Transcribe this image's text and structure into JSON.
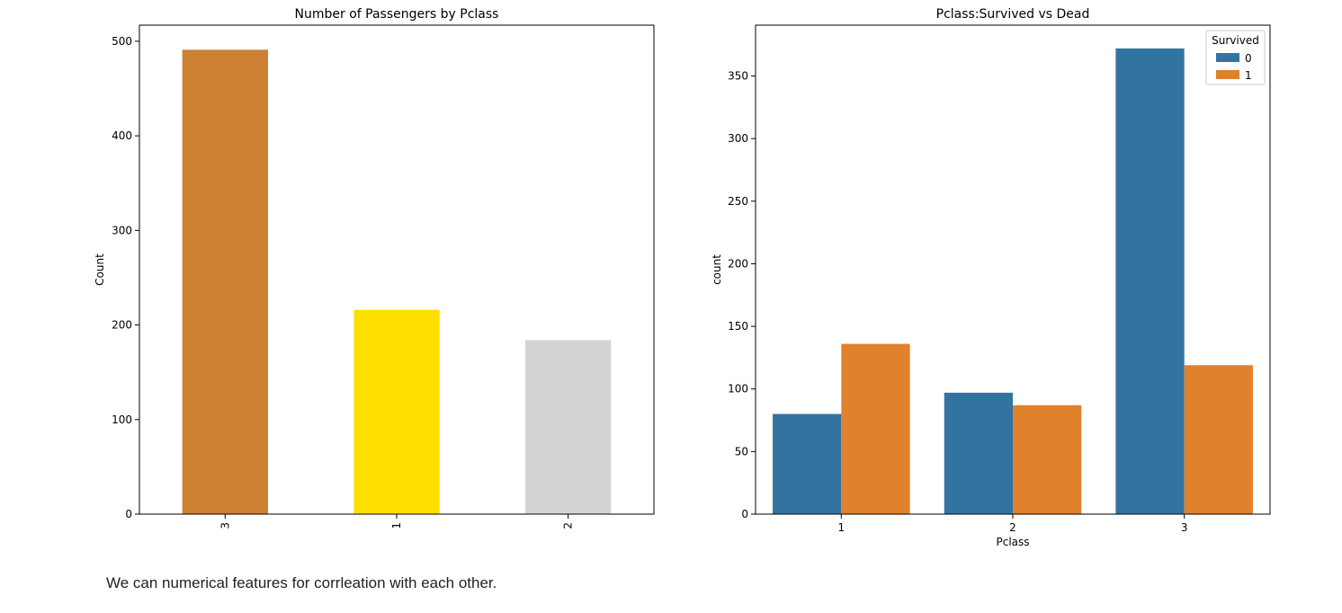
{
  "chart_data": [
    {
      "type": "bar",
      "title": "Number of Passengers by Pclass",
      "xlabel": "",
      "ylabel": "Count",
      "categories": [
        "3",
        "1",
        "2"
      ],
      "values": [
        491,
        216,
        184
      ],
      "colors": [
        "#cd7f32",
        "#ffdf00",
        "#d3d3d3"
      ],
      "ylim": [
        0,
        517
      ],
      "yticks": [
        0,
        100,
        200,
        300,
        400,
        500
      ],
      "grid": false,
      "x_tick_rotation": 90
    },
    {
      "type": "bar",
      "title": "Pclass:Survived vs Dead",
      "xlabel": "Pclass",
      "ylabel": "count",
      "categories": [
        "1",
        "2",
        "3"
      ],
      "series": [
        {
          "name": "0",
          "values": [
            80,
            97,
            372
          ],
          "color": "#3274a1"
        },
        {
          "name": "1",
          "values": [
            136,
            87,
            119
          ],
          "color": "#e1812c"
        }
      ],
      "legend": {
        "title": "Survived",
        "placement": "top-right"
      },
      "ylim": [
        0,
        390.6
      ],
      "yticks": [
        0,
        50,
        100,
        150,
        200,
        250,
        300,
        350
      ],
      "grid": false
    }
  ],
  "caption": "We can numerical features for corrleation with each other."
}
